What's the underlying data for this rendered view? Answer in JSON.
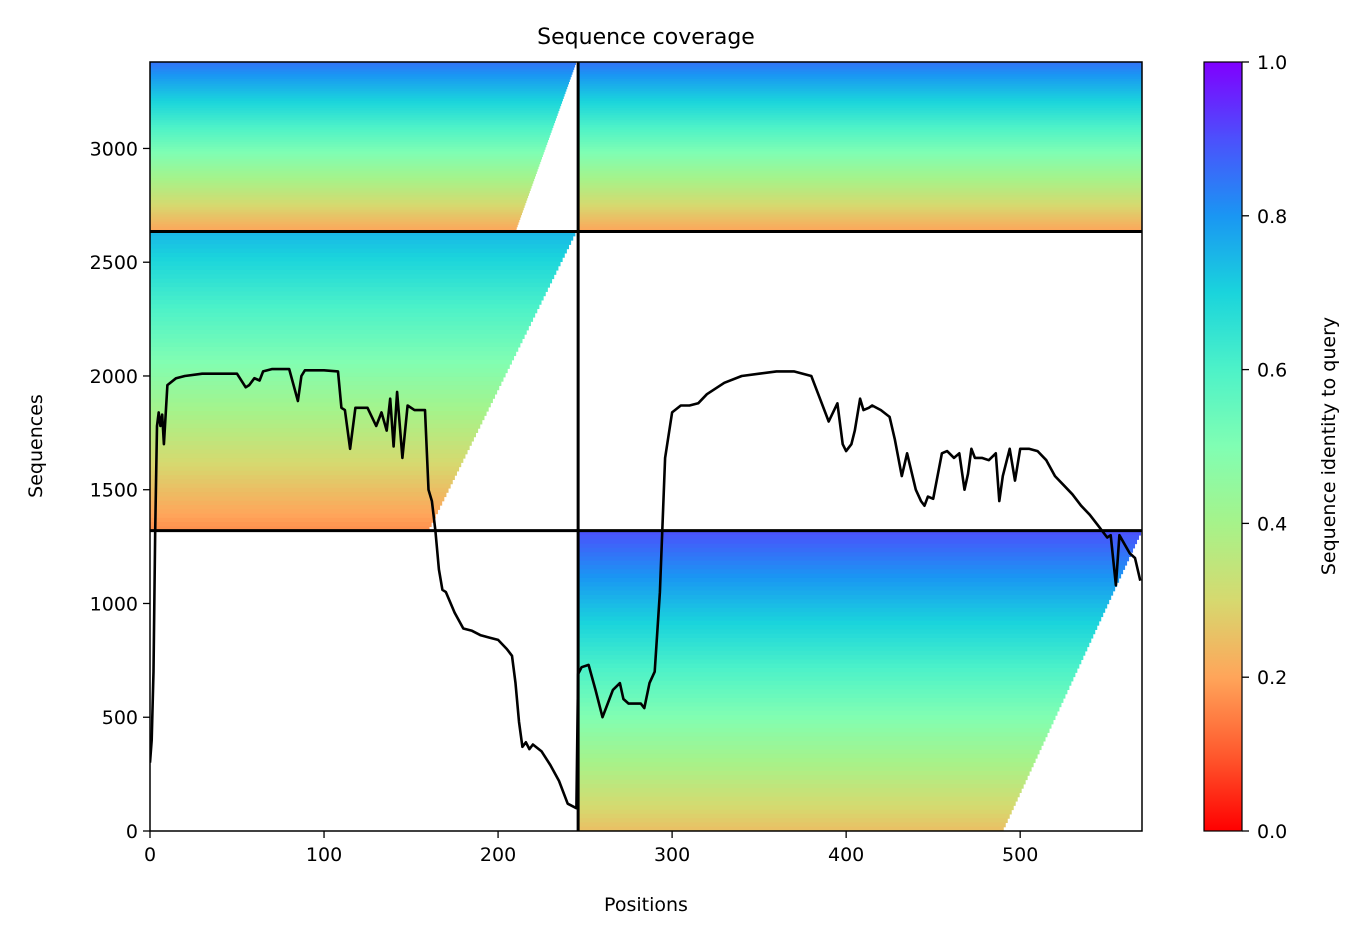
{
  "chart_data": {
    "type": "heatmap",
    "title": "Sequence coverage",
    "xlabel": "Positions",
    "ylabel": "Sequences",
    "xlim": [
      0,
      570
    ],
    "ylim": [
      0,
      3380
    ],
    "x_ticks": [
      0,
      100,
      200,
      300,
      400,
      500
    ],
    "y_ticks": [
      0,
      500,
      1000,
      1500,
      2000,
      2500,
      3000
    ],
    "colorbar": {
      "label": "Sequence identity to query",
      "colormap": "rainbow_r",
      "range": [
        0,
        1
      ],
      "ticks": [
        "0.0",
        "0.2",
        "0.4",
        "0.6",
        "0.8",
        "1.0"
      ]
    },
    "block_boundaries": {
      "positions": [
        246
      ],
      "sequences": [
        1320,
        2635
      ]
    },
    "blocks": [
      {
        "x": [
          0,
          246
        ],
        "y": [
          2635,
          3380
        ],
        "identity_top": 0.85,
        "identity_bottom": 0.2,
        "coverage_end": [
          245,
          210
        ]
      },
      {
        "x": [
          246,
          570
        ],
        "y": [
          2635,
          3380
        ],
        "identity_top": 0.85,
        "identity_bottom": 0.2,
        "coverage_end": [
          570,
          570
        ]
      },
      {
        "x": [
          0,
          246
        ],
        "y": [
          1320,
          2635
        ],
        "identity_top": 0.75,
        "identity_bottom": 0.17,
        "coverage_end": [
          245,
          160
        ]
      },
      {
        "x": [
          246,
          570
        ],
        "y": [
          0,
          1320
        ],
        "identity_top": 0.9,
        "identity_bottom": 0.25,
        "coverage_end": [
          570,
          490
        ]
      }
    ],
    "coverage_line": {
      "color": "#000000",
      "x": [
        0,
        1,
        2,
        3,
        4,
        5,
        6,
        7,
        8,
        10,
        15,
        20,
        30,
        40,
        50,
        55,
        57,
        60,
        63,
        65,
        70,
        80,
        85,
        87,
        89,
        92,
        100,
        108,
        110,
        112,
        115,
        118,
        125,
        130,
        133,
        136,
        138,
        140,
        142,
        145,
        148,
        152,
        158,
        160,
        162,
        164,
        166,
        168,
        170,
        175,
        180,
        185,
        190,
        195,
        200,
        205,
        208,
        210,
        212,
        214,
        216,
        218,
        220,
        225,
        230,
        235,
        240,
        245,
        246,
        248,
        252,
        256,
        260,
        263,
        266,
        270,
        272,
        275,
        278,
        282,
        284,
        287,
        290,
        293,
        296,
        300,
        305,
        310,
        315,
        320,
        330,
        340,
        350,
        360,
        370,
        380,
        385,
        390,
        395,
        398,
        400,
        403,
        405,
        408,
        410,
        413,
        415,
        420,
        425,
        428,
        432,
        435,
        440,
        443,
        445,
        447,
        450,
        455,
        458,
        462,
        465,
        468,
        470,
        472,
        474,
        478,
        482,
        486,
        488,
        490,
        494,
        497,
        500,
        505,
        510,
        515,
        520,
        525,
        530,
        535,
        540,
        545,
        550,
        552,
        555,
        557,
        560,
        563,
        566,
        569
      ],
      "y": [
        300,
        400,
        700,
        1320,
        1780,
        1840,
        1780,
        1830,
        1700,
        1960,
        1990,
        2000,
        2010,
        2010,
        2010,
        1950,
        1960,
        1990,
        1980,
        2020,
        2030,
        2030,
        1890,
        2000,
        2025,
        2025,
        2025,
        2020,
        1860,
        1850,
        1680,
        1860,
        1860,
        1780,
        1840,
        1760,
        1900,
        1690,
        1930,
        1640,
        1870,
        1850,
        1850,
        1500,
        1450,
        1320,
        1150,
        1060,
        1050,
        960,
        890,
        880,
        860,
        850,
        840,
        800,
        770,
        650,
        480,
        370,
        390,
        360,
        380,
        350,
        290,
        220,
        120,
        100,
        690,
        720,
        730,
        620,
        500,
        560,
        620,
        650,
        580,
        560,
        560,
        560,
        540,
        650,
        700,
        1050,
        1640,
        1840,
        1870,
        1870,
        1880,
        1920,
        1970,
        2000,
        2010,
        2020,
        2020,
        2000,
        1900,
        1800,
        1880,
        1700,
        1670,
        1700,
        1760,
        1900,
        1850,
        1860,
        1870,
        1850,
        1820,
        1720,
        1560,
        1660,
        1500,
        1450,
        1430,
        1470,
        1460,
        1660,
        1670,
        1640,
        1660,
        1500,
        1570,
        1680,
        1640,
        1640,
        1630,
        1660,
        1450,
        1560,
        1680,
        1540,
        1680,
        1680,
        1670,
        1630,
        1560,
        1520,
        1480,
        1430,
        1390,
        1340,
        1290,
        1300,
        1080,
        1300,
        1260,
        1220,
        1200,
        1100
      ]
    }
  }
}
